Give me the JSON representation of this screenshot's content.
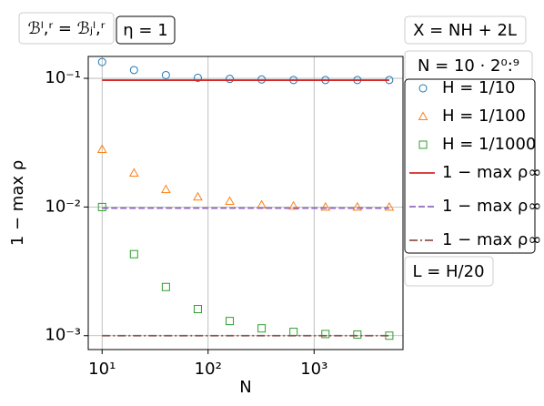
{
  "chart_data": {
    "type": "scatter",
    "xlabel": "N",
    "ylabel": "1 − max ρ",
    "log_x": true,
    "log_y": true,
    "grid": true,
    "xlim": [
      7.4,
      6900
    ],
    "ylim": [
      0.00078,
      0.148
    ],
    "xticks": [
      {
        "value": 10,
        "label": "10¹"
      },
      {
        "value": 100,
        "label": "10²"
      },
      {
        "value": 1000,
        "label": "10³"
      }
    ],
    "yticks": [
      {
        "value": 0.001,
        "label": "10⁻³"
      },
      {
        "value": 0.01,
        "label": "10⁻²"
      },
      {
        "value": 0.1,
        "label": "10⁻¹"
      }
    ],
    "x": [
      10,
      20,
      40,
      80,
      160,
      320,
      640,
      1280,
      2560,
      5120
    ],
    "annotations": [
      "ℬˡ,ʳ = ℬⱼˡ,ʳ",
      "η = 1",
      "X = NH + 2L",
      "N = 10 · 2⁰:⁹",
      "L = H/20"
    ],
    "series": [
      {
        "name": "H = 1/10",
        "color": "#1f77b4",
        "marker": "circle",
        "values": [
          0.134,
          0.116,
          0.106,
          0.101,
          0.099,
          0.098,
          0.097,
          0.097,
          0.097,
          0.097
        ]
      },
      {
        "name": "H = 1/100",
        "color": "#ff7f0e",
        "marker": "triangle",
        "values": [
          0.0281,
          0.0184,
          0.0137,
          0.012,
          0.0111,
          0.0104,
          0.0102,
          0.01,
          0.01,
          0.01
        ]
      },
      {
        "name": "H = 1/1000",
        "color": "#2ca02c",
        "marker": "square",
        "values": [
          0.01,
          0.0043,
          0.00239,
          0.00161,
          0.0013,
          0.00114,
          0.00107,
          0.00103,
          0.00102,
          0.001
        ]
      },
      {
        "name": "1 − max ρ∞",
        "color": "#d62728",
        "linestyle": "solid",
        "x": [
          10,
          5120
        ],
        "values": [
          0.0968,
          0.0968
        ]
      },
      {
        "name": "1 − max ρ∞",
        "color": "#9467bd",
        "linestyle": "dashed",
        "x": [
          10,
          5120
        ],
        "values": [
          0.0098,
          0.0098
        ]
      },
      {
        "name": "1 − max ρ∞",
        "color": "#8c564b",
        "linestyle": "dashdot",
        "x": [
          10,
          5120
        ],
        "values": [
          0.001,
          0.001
        ]
      }
    ]
  }
}
